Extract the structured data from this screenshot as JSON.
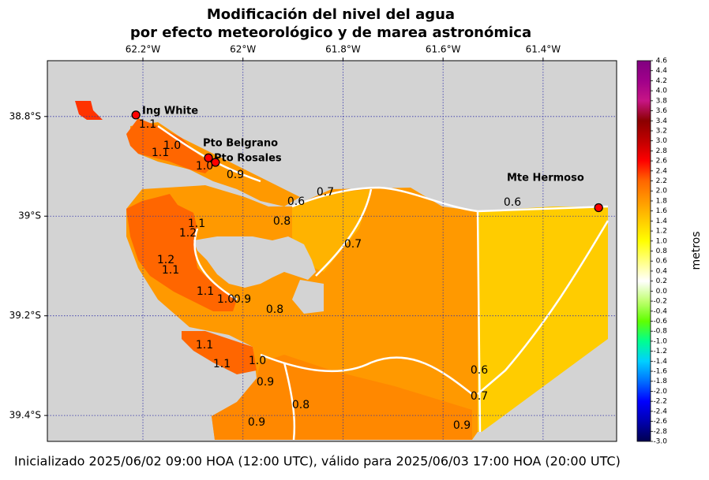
{
  "chart_data": {
    "type": "map",
    "title": [
      "Modificación del nivel del agua",
      "por efecto meteorológico y de marea astronómica"
    ],
    "xlim": [
      -62.391,
      -61.253
    ],
    "ylim": [
      -39.452,
      -38.688
    ],
    "xticks": [
      {
        "value": -62.2,
        "label": "62.2°W"
      },
      {
        "value": -62.0,
        "label": "62°W"
      },
      {
        "value": -61.8,
        "label": "61.8°W"
      },
      {
        "value": -61.6,
        "label": "61.6°W"
      },
      {
        "value": -61.4,
        "label": "61.4°W"
      }
    ],
    "yticks": [
      {
        "value": -38.8,
        "label": "38.8°S"
      },
      {
        "value": -39.0,
        "label": "39°S"
      },
      {
        "value": -39.2,
        "label": "39.2°S"
      },
      {
        "value": -39.4,
        "label": "39.4°S"
      }
    ],
    "grid": true,
    "grid_color": "#3333aa",
    "stations": [
      {
        "name": "Ing White",
        "lon": -62.214,
        "lat": -38.797
      },
      {
        "name": "Pto Belgrano",
        "lon": -62.069,
        "lat": -38.883
      },
      {
        "name": "Pto Rosales",
        "lon": -62.055,
        "lat": -38.892
      },
      {
        "name": "Mte Hermoso",
        "lon": -61.289,
        "lat": -38.983
      }
    ],
    "station_color": "#ff0000",
    "colorbar": {
      "label": "metros",
      "lim": [
        -3.0,
        4.6
      ],
      "colors": [
        "#00004f",
        "#0000b0",
        "#0000ff",
        "#0070ff",
        "#00d0ff",
        "#00ff90",
        "#60ff00",
        "#c0ff70",
        "#ffffff",
        "#ffff80",
        "#ffff00",
        "#ffcc00",
        "#ff9900",
        "#ff6600",
        "#ff0000",
        "#c00000",
        "#8b0000",
        "#c71585",
        "#a0008a",
        "#800080"
      ],
      "ticks": [
        {
          "value": -3.0,
          "label": "-3.0"
        },
        -2.8,
        -2.6,
        -2.4,
        -2.2,
        {
          "value": -2.0,
          "label": "-2.0"
        },
        -1.8,
        -1.6,
        -1.4,
        -1.2,
        {
          "value": -1.0,
          "label": "-1.0"
        },
        -0.8,
        -0.6,
        -0.4,
        -0.2,
        {
          "value": 0.0,
          "label": "0.0"
        },
        0.2,
        0.4,
        0.6,
        0.8,
        {
          "value": 1.0,
          "label": "1.0"
        },
        1.2,
        1.4,
        1.6,
        1.8,
        {
          "value": 2.0,
          "label": "2.0"
        },
        2.2,
        2.4,
        2.6,
        2.8,
        {
          "value": 3.0,
          "label": "3.0"
        },
        3.2,
        3.4,
        3.6,
        3.8,
        {
          "value": 4.0,
          "label": "4.0"
        },
        4.2,
        4.4,
        4.6
      ]
    }
  },
  "contour_labels": [
    "1.1",
    "1.0",
    "1.1",
    "1.0",
    "0.9",
    "0.7",
    "0.6",
    "0.8",
    "0.6",
    "1.1",
    "1.2",
    "0.7",
    "1.2",
    "1.1",
    "1.1",
    "1.0",
    "0.9",
    "0.8",
    "1.1",
    "1.1",
    "1.0",
    "0.9",
    "0.6",
    "0.7",
    "0.8",
    "0.9",
    "0.9"
  ],
  "footer": "Inicializado 2025/06/02 09:00 HOA (12:00 UTC), válido para 2025/06/03 17:00 HOA (20:00 UTC)"
}
